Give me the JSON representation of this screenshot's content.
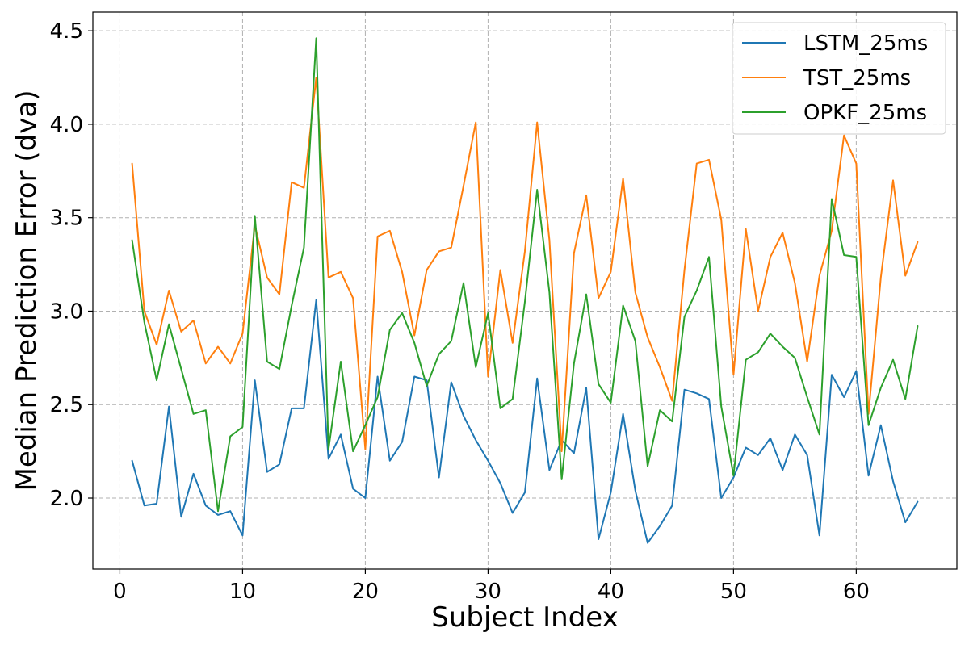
{
  "chart_data": {
    "type": "line",
    "title": "",
    "xlabel": "Subject Index",
    "ylabel": "Median Prediction Error (dva)",
    "xlim": [
      -2.2,
      68.2
    ],
    "ylim": [
      1.62,
      4.6
    ],
    "xticks": [
      0,
      10,
      20,
      30,
      40,
      50,
      60
    ],
    "yticks": [
      2.0,
      2.5,
      3.0,
      3.5,
      4.0,
      4.5
    ],
    "xtick_labels": [
      "0",
      "10",
      "20",
      "30",
      "40",
      "50",
      "60"
    ],
    "ytick_labels": [
      "2.0",
      "2.5",
      "3.0",
      "3.5",
      "4.0",
      "4.5"
    ],
    "grid": true,
    "legend_position": "top-right",
    "x": [
      1,
      2,
      3,
      4,
      5,
      6,
      7,
      8,
      9,
      10,
      11,
      12,
      13,
      14,
      15,
      16,
      17,
      18,
      19,
      20,
      21,
      22,
      23,
      24,
      25,
      26,
      27,
      28,
      29,
      30,
      31,
      32,
      33,
      34,
      35,
      36,
      37,
      38,
      39,
      40,
      41,
      42,
      43,
      44,
      45,
      46,
      47,
      48,
      49,
      50,
      51,
      52,
      53,
      54,
      55,
      56,
      57,
      58,
      59,
      60,
      61,
      62,
      63,
      64,
      65
    ],
    "series": [
      {
        "name": "LSTM_25ms",
        "color": "#1f77b4",
        "values": [
          2.2,
          1.96,
          1.97,
          2.49,
          1.9,
          2.13,
          1.96,
          1.91,
          1.93,
          1.8,
          2.63,
          2.14,
          2.18,
          2.48,
          2.48,
          3.06,
          2.21,
          2.34,
          2.05,
          2.0,
          2.65,
          2.2,
          2.3,
          2.65,
          2.63,
          2.11,
          2.62,
          2.44,
          2.31,
          2.2,
          2.08,
          1.92,
          2.03,
          2.64,
          2.15,
          2.31,
          2.24,
          2.59,
          1.78,
          2.03,
          2.45,
          2.04,
          1.76,
          1.85,
          1.96,
          2.58,
          2.56,
          2.53,
          2.0,
          2.11,
          2.27,
          2.23,
          2.32,
          2.15,
          2.34,
          2.23,
          1.8,
          2.66,
          2.54,
          2.68,
          2.12,
          2.39,
          2.09,
          1.87,
          1.98
        ]
      },
      {
        "name": "TST_25ms",
        "color": "#ff7f0e",
        "values": [
          3.79,
          3.0,
          2.82,
          3.11,
          2.89,
          2.95,
          2.72,
          2.81,
          2.72,
          2.88,
          3.46,
          3.18,
          3.09,
          3.69,
          3.66,
          4.25,
          3.18,
          3.21,
          3.07,
          2.26,
          3.4,
          3.43,
          3.21,
          2.87,
          3.22,
          3.32,
          3.34,
          3.67,
          4.01,
          2.65,
          3.22,
          2.83,
          3.32,
          4.01,
          3.38,
          2.25,
          3.31,
          3.62,
          3.07,
          3.21,
          3.71,
          3.1,
          2.86,
          2.7,
          2.52,
          3.22,
          3.79,
          3.81,
          3.49,
          2.66,
          3.44,
          3.0,
          3.29,
          3.42,
          3.15,
          2.73,
          3.19,
          3.43,
          3.94,
          3.79,
          2.45,
          3.18,
          3.7,
          3.19,
          3.37
        ]
      },
      {
        "name": "OPKF_25ms",
        "color": "#2ca02c",
        "values": [
          3.38,
          2.94,
          2.63,
          2.93,
          2.69,
          2.45,
          2.47,
          1.93,
          2.33,
          2.38,
          3.51,
          2.73,
          2.69,
          3.03,
          3.34,
          4.46,
          2.26,
          2.73,
          2.25,
          2.39,
          2.54,
          2.9,
          2.99,
          2.83,
          2.6,
          2.77,
          2.84,
          3.15,
          2.7,
          2.99,
          2.48,
          2.53,
          3.05,
          3.65,
          3.1,
          2.1,
          2.72,
          3.09,
          2.61,
          2.51,
          3.03,
          2.84,
          2.17,
          2.47,
          2.41,
          2.97,
          3.11,
          3.29,
          2.49,
          2.12,
          2.74,
          2.78,
          2.88,
          2.81,
          2.75,
          2.54,
          2.34,
          3.6,
          3.3,
          3.29,
          2.39,
          2.59,
          2.74,
          2.53,
          2.92
        ]
      }
    ]
  }
}
